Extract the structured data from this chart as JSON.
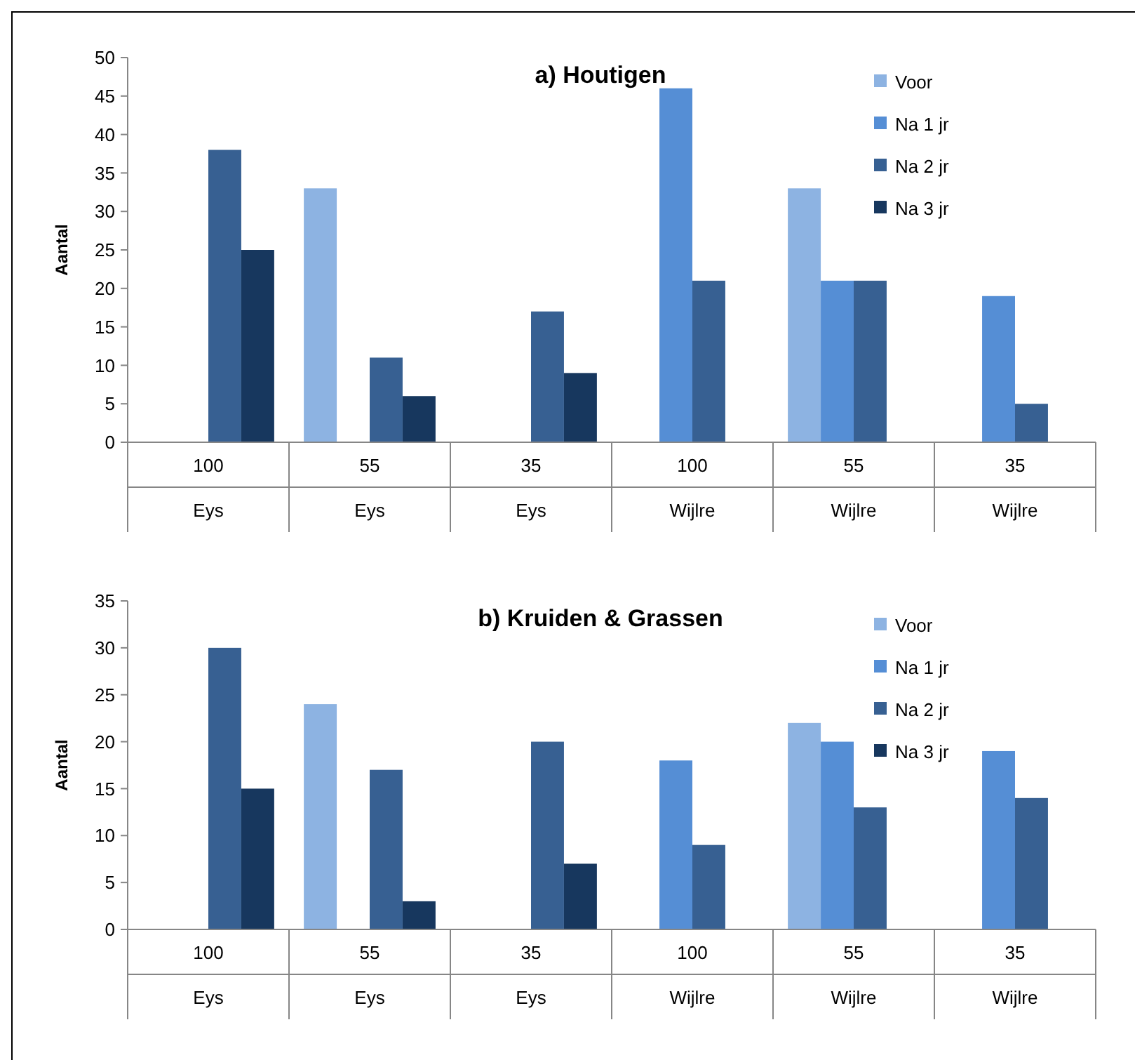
{
  "chart_data": [
    {
      "type": "bar",
      "title": "a) Houtigen",
      "ylabel": "Aantal",
      "categories": [
        "100\nEys",
        "55\nEys",
        "35\nEys",
        "100\nWijlre",
        "55\nWijlre",
        "35\nWijlre"
      ],
      "ylim": [
        0,
        50
      ],
      "yticks": [
        0,
        5,
        10,
        15,
        20,
        25,
        30,
        35,
        40,
        45,
        50
      ],
      "legend": "top right",
      "grid": false,
      "series": [
        {
          "name": "Voor",
          "color": "#8db3e2",
          "values": [
            null,
            33,
            null,
            null,
            33,
            null
          ]
        },
        {
          "name": "Na 1 jr",
          "color": "#558ed5",
          "values": [
            null,
            null,
            null,
            46,
            21,
            19
          ]
        },
        {
          "name": "Na 2 jr",
          "color": "#376092",
          "values": [
            38,
            11,
            17,
            21,
            21,
            5
          ]
        },
        {
          "name": "Na 3 jr",
          "color": "#17375e",
          "values": [
            25,
            6,
            9,
            null,
            null,
            null
          ]
        }
      ]
    },
    {
      "type": "bar",
      "title": "b) Kruiden & Grassen",
      "ylabel": "Aantal",
      "categories": [
        "100\nEys",
        "55\nEys",
        "35\nEys",
        "100\nWijlre",
        "55\nWijlre",
        "35\nWijlre"
      ],
      "ylim": [
        0,
        35
      ],
      "yticks": [
        0,
        5,
        10,
        15,
        20,
        25,
        30,
        35
      ],
      "legend": "top right",
      "grid": false,
      "series": [
        {
          "name": "Voor",
          "color": "#8db3e2",
          "values": [
            null,
            24,
            null,
            null,
            22,
            null
          ]
        },
        {
          "name": "Na 1 jr",
          "color": "#558ed5",
          "values": [
            null,
            null,
            null,
            18,
            20,
            19
          ]
        },
        {
          "name": "Na 2 jr",
          "color": "#376092",
          "values": [
            30,
            17,
            20,
            9,
            13,
            14
          ]
        },
        {
          "name": "Na 3 jr",
          "color": "#17375e",
          "values": [
            15,
            3,
            7,
            null,
            null,
            null
          ]
        }
      ]
    }
  ]
}
